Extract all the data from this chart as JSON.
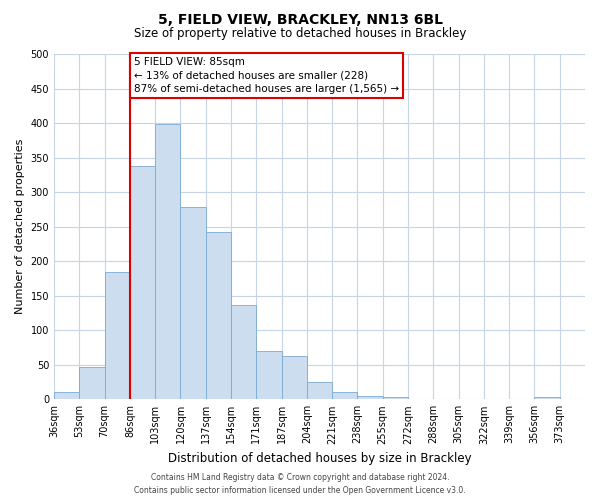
{
  "title": "5, FIELD VIEW, BRACKLEY, NN13 6BL",
  "subtitle": "Size of property relative to detached houses in Brackley",
  "xlabel": "Distribution of detached houses by size in Brackley",
  "ylabel": "Number of detached properties",
  "bar_values": [
    10,
    47,
    185,
    338,
    398,
    278,
    242,
    137,
    70,
    62,
    25,
    10,
    5,
    3,
    1,
    1,
    0,
    0,
    0,
    3,
    0
  ],
  "bin_labels": [
    "36sqm",
    "53sqm",
    "70sqm",
    "86sqm",
    "103sqm",
    "120sqm",
    "137sqm",
    "154sqm",
    "171sqm",
    "187sqm",
    "204sqm",
    "221sqm",
    "238sqm",
    "255sqm",
    "272sqm",
    "288sqm",
    "305sqm",
    "322sqm",
    "339sqm",
    "356sqm",
    "373sqm"
  ],
  "bar_color": "#ccddf0",
  "bar_edge_color": "#7aaad0",
  "vline_x_index": 3,
  "vline_color": "#dd0000",
  "ylim": [
    0,
    500
  ],
  "yticks": [
    0,
    50,
    100,
    150,
    200,
    250,
    300,
    350,
    400,
    450,
    500
  ],
  "annotation_text": "5 FIELD VIEW: 85sqm\n← 13% of detached houses are smaller (228)\n87% of semi-detached houses are larger (1,565) →",
  "annotation_box_color": "#ffffff",
  "annotation_box_edge": "#dd0000",
  "footer_line1": "Contains HM Land Registry data © Crown copyright and database right 2024.",
  "footer_line2": "Contains public sector information licensed under the Open Government Licence v3.0.",
  "bg_color": "#ffffff",
  "grid_color": "#c5d5e5",
  "title_fontsize": 10,
  "subtitle_fontsize": 8.5,
  "ylabel_fontsize": 8,
  "xlabel_fontsize": 8.5,
  "tick_fontsize": 7,
  "annot_fontsize": 7.5,
  "footer_fontsize": 5.5
}
